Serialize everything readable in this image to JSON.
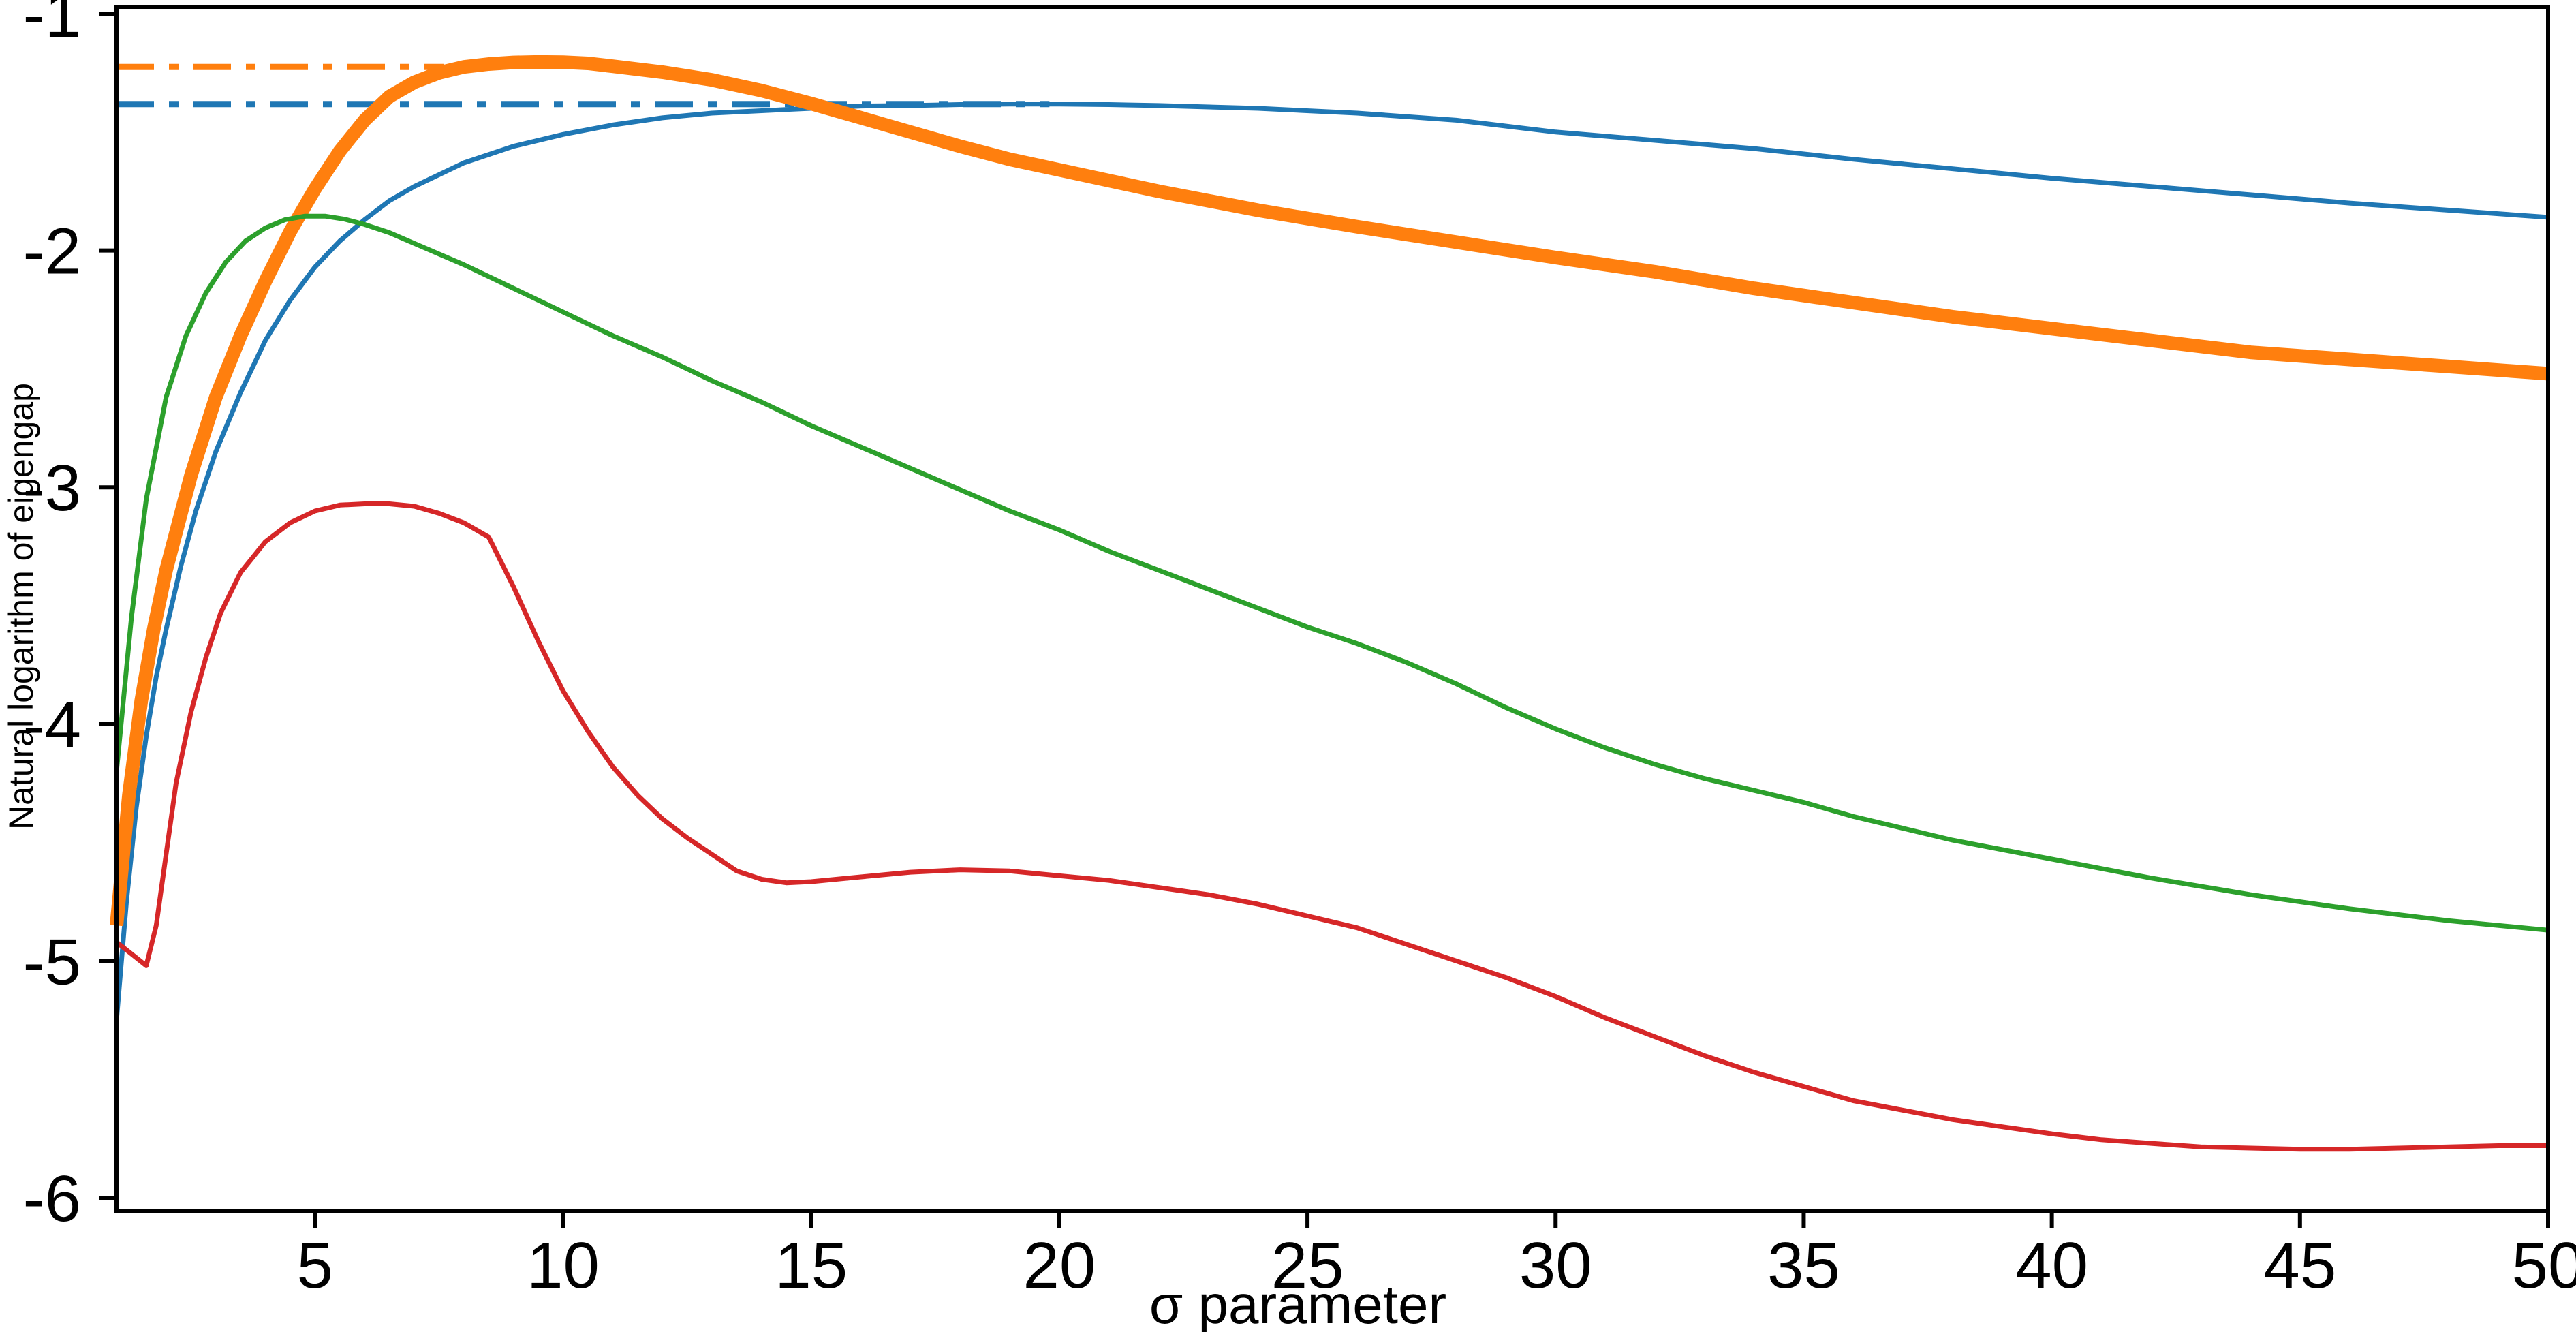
{
  "figure": {
    "background": "#ffffff",
    "spine_color": "#000000",
    "tick_color": "#000000"
  },
  "chart_data": {
    "type": "line",
    "title": "",
    "xlabel": "σ parameter",
    "ylabel": "Natural logarithm of eigengap",
    "xlim": [
      1,
      50
    ],
    "ylim": [
      -6.06,
      -0.97
    ],
    "grid": false,
    "legend": null,
    "xticks": [
      5,
      10,
      15,
      20,
      25,
      30,
      35,
      40,
      45,
      50
    ],
    "yticks": [
      -1,
      -2,
      -3,
      -4,
      -5,
      -6
    ],
    "reference_lines": [
      {
        "name": "orange-max-reference-line",
        "color": "#ff7f0e",
        "y": -1.225,
        "x_start": 1,
        "x_end": 7.6,
        "style": "dashdot",
        "width": 9
      },
      {
        "name": "blue-max-reference-line",
        "color": "#1f77b4",
        "y": -1.382,
        "x_start": 1,
        "x_end": 19.8,
        "style": "dashdot",
        "width": 9
      }
    ],
    "series": [
      {
        "name": "blue-curve",
        "color": "#1f77b4",
        "width": 7,
        "x": [
          1,
          1.2,
          1.4,
          1.6,
          1.8,
          2,
          2.3,
          2.6,
          3,
          3.5,
          4,
          4.5,
          5,
          5.5,
          6,
          6.5,
          7,
          8,
          9,
          10,
          11,
          12,
          13,
          14,
          15,
          16,
          17,
          18,
          19,
          20,
          21,
          22,
          24,
          26,
          28,
          30,
          32,
          34,
          36,
          38,
          40,
          42,
          44,
          46,
          48,
          50
        ],
        "y": [
          -5.25,
          -4.75,
          -4.35,
          -4.05,
          -3.8,
          -3.6,
          -3.33,
          -3.1,
          -2.85,
          -2.6,
          -2.38,
          -2.21,
          -2.07,
          -1.96,
          -1.87,
          -1.79,
          -1.73,
          -1.63,
          -1.56,
          -1.51,
          -1.47,
          -1.44,
          -1.42,
          -1.41,
          -1.4,
          -1.39,
          -1.388,
          -1.384,
          -1.382,
          -1.382,
          -1.384,
          -1.388,
          -1.4,
          -1.42,
          -1.45,
          -1.5,
          -1.535,
          -1.57,
          -1.615,
          -1.655,
          -1.695,
          -1.73,
          -1.765,
          -1.8,
          -1.83,
          -1.86
        ]
      },
      {
        "name": "orange-curve",
        "color": "#ff7f0e",
        "width": 20,
        "x": [
          1,
          1.25,
          1.5,
          1.75,
          2,
          2.5,
          3,
          3.5,
          4,
          4.5,
          5,
          5.5,
          6,
          6.5,
          7,
          7.5,
          8,
          8.5,
          9,
          9.5,
          10,
          10.5,
          11,
          12,
          13,
          14,
          15,
          16,
          17,
          18,
          19,
          20,
          22,
          24,
          26,
          28,
          30,
          32,
          34,
          36,
          38,
          40,
          42,
          44,
          46,
          48,
          50
        ],
        "y": [
          -4.85,
          -4.3,
          -3.9,
          -3.6,
          -3.35,
          -2.95,
          -2.62,
          -2.36,
          -2.13,
          -1.92,
          -1.74,
          -1.58,
          -1.45,
          -1.35,
          -1.29,
          -1.25,
          -1.225,
          -1.213,
          -1.206,
          -1.204,
          -1.205,
          -1.21,
          -1.222,
          -1.247,
          -1.28,
          -1.325,
          -1.38,
          -1.44,
          -1.5,
          -1.56,
          -1.615,
          -1.66,
          -1.75,
          -1.83,
          -1.9,
          -1.965,
          -2.03,
          -2.09,
          -2.16,
          -2.22,
          -2.28,
          -2.33,
          -2.38,
          -2.43,
          -2.46,
          -2.49,
          -2.52
        ]
      },
      {
        "name": "green-curve",
        "color": "#2ca02c",
        "width": 7,
        "x": [
          1,
          1.3,
          1.6,
          2,
          2.4,
          2.8,
          3.2,
          3.6,
          4,
          4.4,
          4.8,
          5.2,
          5.6,
          6,
          6.5,
          7,
          8,
          9,
          10,
          11,
          12,
          13,
          14,
          15,
          16,
          17,
          18,
          19,
          20,
          21,
          22,
          23,
          24,
          25,
          26,
          27,
          28,
          29,
          30,
          31,
          32,
          33,
          34,
          35,
          36,
          37,
          38,
          39,
          40,
          42,
          44,
          46,
          48,
          50
        ],
        "y": [
          -4.2,
          -3.55,
          -3.05,
          -2.62,
          -2.36,
          -2.18,
          -2.05,
          -1.96,
          -1.905,
          -1.87,
          -1.855,
          -1.855,
          -1.868,
          -1.89,
          -1.925,
          -1.97,
          -2.06,
          -2.16,
          -2.26,
          -2.36,
          -2.45,
          -2.55,
          -2.64,
          -2.74,
          -2.83,
          -2.92,
          -3.01,
          -3.1,
          -3.18,
          -3.27,
          -3.35,
          -3.43,
          -3.51,
          -3.59,
          -3.66,
          -3.74,
          -3.83,
          -3.93,
          -4.02,
          -4.1,
          -4.17,
          -4.23,
          -4.28,
          -4.33,
          -4.39,
          -4.44,
          -4.49,
          -4.53,
          -4.57,
          -4.65,
          -4.72,
          -4.78,
          -4.83,
          -4.87
        ]
      },
      {
        "name": "red-curve",
        "color": "#d62728",
        "width": 7,
        "x": [
          1,
          1.3,
          1.6,
          1.8,
          2,
          2.2,
          2.5,
          2.8,
          3.1,
          3.5,
          4,
          4.5,
          5,
          5.5,
          6,
          6.5,
          7,
          7.5,
          8,
          8.5,
          9,
          9.5,
          10,
          10.5,
          11,
          11.5,
          12,
          12.5,
          13,
          13.5,
          14,
          14.5,
          15,
          16,
          17,
          18,
          19,
          20,
          21,
          22,
          23,
          24,
          25,
          26,
          27,
          28,
          29,
          30,
          31,
          32,
          33,
          34,
          35,
          36,
          37,
          38,
          39,
          40,
          41,
          42,
          43,
          44,
          45,
          46,
          47,
          48,
          49,
          50
        ],
        "y": [
          -4.92,
          -4.97,
          -5.02,
          -4.85,
          -4.55,
          -4.25,
          -3.95,
          -3.72,
          -3.53,
          -3.36,
          -3.23,
          -3.15,
          -3.1,
          -3.075,
          -3.07,
          -3.07,
          -3.08,
          -3.11,
          -3.15,
          -3.21,
          -3.42,
          -3.65,
          -3.86,
          -4.03,
          -4.18,
          -4.3,
          -4.4,
          -4.48,
          -4.55,
          -4.62,
          -4.655,
          -4.67,
          -4.665,
          -4.645,
          -4.625,
          -4.615,
          -4.62,
          -4.64,
          -4.66,
          -4.69,
          -4.72,
          -4.76,
          -4.81,
          -4.86,
          -4.93,
          -5.0,
          -5.07,
          -5.15,
          -5.24,
          -5.32,
          -5.4,
          -5.47,
          -5.53,
          -5.59,
          -5.63,
          -5.67,
          -5.7,
          -5.73,
          -5.755,
          -5.77,
          -5.785,
          -5.79,
          -5.795,
          -5.795,
          -5.79,
          -5.785,
          -5.78,
          -5.78
        ]
      }
    ]
  }
}
